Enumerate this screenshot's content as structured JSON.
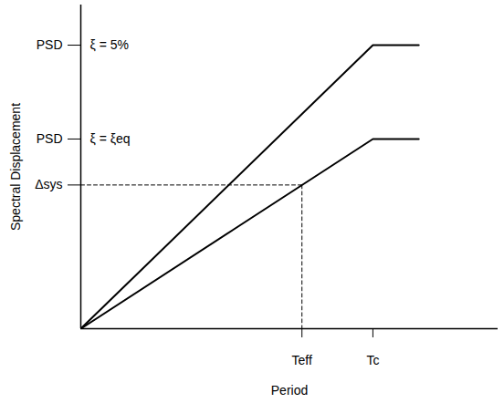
{
  "chart_data": {
    "type": "line",
    "xlabel": "Period",
    "ylabel": "Spectral Displacement",
    "xlim": [
      0,
      10
    ],
    "ylim": [
      0,
      10
    ],
    "xticks": [
      {
        "value": 5.3,
        "label": "Teff"
      },
      {
        "value": 7,
        "label": "Tc"
      }
    ],
    "yticks": [
      {
        "value": 4.44,
        "label": "Δsys"
      },
      {
        "value": 5.86,
        "label": "PSD"
      },
      {
        "value": 8.76,
        "label": "PSD"
      }
    ],
    "series": [
      {
        "name": "ξ = 5%",
        "color": "#000000",
        "x": [
          0,
          7,
          8.1
        ],
        "values": [
          0,
          8.76,
          8.76
        ]
      },
      {
        "name": "ξ = ξeq",
        "color": "#000000",
        "x": [
          0,
          7,
          8.1
        ],
        "values": [
          0,
          5.86,
          5.86
        ]
      }
    ],
    "guides": [
      {
        "color": "#000000",
        "line_style": "dashed",
        "x": [
          0,
          5.3
        ],
        "values": [
          4.44,
          4.44
        ]
      },
      {
        "color": "#000000",
        "line_style": "dashed",
        "x": [
          5.3,
          5.3
        ],
        "values": [
          4.44,
          0
        ]
      }
    ]
  }
}
